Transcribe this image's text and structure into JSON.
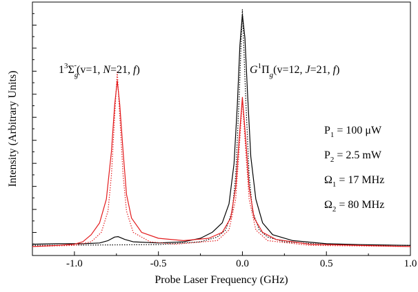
{
  "chart_data": {
    "type": "line",
    "xlabel": "Probe Laser Frequency (GHz)",
    "ylabel": "Intensity (Arbitrary Units)",
    "xlim": [
      -1.25,
      1.0
    ],
    "ylim": [
      0,
      1.0
    ],
    "x_ticks": [
      -1.0,
      -0.5,
      0.0,
      0.5,
      1.0
    ],
    "x_tick_labels": [
      "-1.0",
      "-0.5",
      "0.0",
      "0.5",
      "1.0"
    ],
    "y_tick_labels_shown": false,
    "grid": false,
    "series": [
      {
        "color": "#000000",
        "style": "solid",
        "points": [
          [
            -1.25,
            0.01
          ],
          [
            -1.1,
            0.012
          ],
          [
            -0.95,
            0.012
          ],
          [
            -0.85,
            0.015
          ],
          [
            -0.8,
            0.025
          ],
          [
            -0.76,
            0.04
          ],
          [
            -0.74,
            0.042
          ],
          [
            -0.7,
            0.03
          ],
          [
            -0.65,
            0.02
          ],
          [
            -0.5,
            0.015
          ],
          [
            -0.35,
            0.02
          ],
          [
            -0.25,
            0.035
          ],
          [
            -0.18,
            0.06
          ],
          [
            -0.12,
            0.1
          ],
          [
            -0.08,
            0.18
          ],
          [
            -0.05,
            0.35
          ],
          [
            -0.03,
            0.6
          ],
          [
            -0.015,
            0.85
          ],
          [
            0.0,
            0.98
          ],
          [
            0.015,
            0.88
          ],
          [
            0.03,
            0.65
          ],
          [
            0.05,
            0.38
          ],
          [
            0.08,
            0.2
          ],
          [
            0.12,
            0.1
          ],
          [
            0.18,
            0.05
          ],
          [
            0.3,
            0.025
          ],
          [
            0.5,
            0.012
          ],
          [
            0.7,
            0.008
          ],
          [
            1.0,
            0.005
          ]
        ]
      },
      {
        "color": "#000000",
        "style": "dotted",
        "points": [
          [
            -1.25,
            0.005
          ],
          [
            -0.5,
            0.008
          ],
          [
            -0.25,
            0.02
          ],
          [
            -0.15,
            0.04
          ],
          [
            -0.1,
            0.07
          ],
          [
            -0.06,
            0.15
          ],
          [
            -0.04,
            0.3
          ],
          [
            -0.02,
            0.62
          ],
          [
            0.0,
            1.0
          ],
          [
            0.02,
            0.62
          ],
          [
            0.04,
            0.3
          ],
          [
            0.06,
            0.15
          ],
          [
            0.1,
            0.07
          ],
          [
            0.15,
            0.04
          ],
          [
            0.25,
            0.02
          ],
          [
            0.5,
            0.008
          ],
          [
            1.0,
            0.005
          ]
        ]
      },
      {
        "color": "#e31a1c",
        "style": "solid",
        "points": [
          [
            -1.25,
            0.0
          ],
          [
            -1.1,
            0.005
          ],
          [
            -1.0,
            0.01
          ],
          [
            -0.95,
            0.02
          ],
          [
            -0.9,
            0.05
          ],
          [
            -0.85,
            0.1
          ],
          [
            -0.81,
            0.2
          ],
          [
            -0.78,
            0.4
          ],
          [
            -0.76,
            0.6
          ],
          [
            -0.745,
            0.7
          ],
          [
            -0.73,
            0.6
          ],
          [
            -0.71,
            0.4
          ],
          [
            -0.69,
            0.22
          ],
          [
            -0.66,
            0.12
          ],
          [
            -0.6,
            0.06
          ],
          [
            -0.5,
            0.035
          ],
          [
            -0.35,
            0.025
          ],
          [
            -0.2,
            0.035
          ],
          [
            -0.12,
            0.06
          ],
          [
            -0.07,
            0.12
          ],
          [
            -0.04,
            0.25
          ],
          [
            -0.02,
            0.45
          ],
          [
            0.0,
            0.63
          ],
          [
            0.02,
            0.45
          ],
          [
            0.04,
            0.25
          ],
          [
            0.07,
            0.12
          ],
          [
            0.12,
            0.06
          ],
          [
            0.2,
            0.03
          ],
          [
            0.4,
            0.01
          ],
          [
            1.0,
            0.0
          ]
        ]
      },
      {
        "color": "#e31a1c",
        "style": "dotted",
        "points": [
          [
            -1.25,
            0.0
          ],
          [
            -1.0,
            0.005
          ],
          [
            -0.9,
            0.02
          ],
          [
            -0.84,
            0.06
          ],
          [
            -0.8,
            0.15
          ],
          [
            -0.78,
            0.3
          ],
          [
            -0.76,
            0.55
          ],
          [
            -0.745,
            0.74
          ],
          [
            -0.73,
            0.55
          ],
          [
            -0.71,
            0.3
          ],
          [
            -0.69,
            0.15
          ],
          [
            -0.65,
            0.06
          ],
          [
            -0.55,
            0.02
          ],
          [
            -0.4,
            0.01
          ],
          [
            -0.15,
            0.025
          ],
          [
            -0.08,
            0.07
          ],
          [
            -0.04,
            0.2
          ],
          [
            -0.02,
            0.4
          ],
          [
            0.0,
            0.62
          ],
          [
            0.02,
            0.4
          ],
          [
            0.04,
            0.2
          ],
          [
            0.08,
            0.07
          ],
          [
            0.15,
            0.025
          ],
          [
            0.4,
            0.005
          ],
          [
            1.0,
            0.0
          ]
        ]
      }
    ],
    "annotations": {
      "left_peak": {
        "pre": "1",
        "sup": "3",
        "sigma": "Σ",
        "sub": "g",
        "sup2": "-",
        "mid": "(v=1, ",
        "italic1": "N",
        "mid2": "=21, ",
        "italic2": "f",
        "end": ")"
      },
      "right_peak": {
        "italic0": "G",
        "sup": "1",
        "pi": "Π",
        "sub": "g",
        "mid": "(v=12, ",
        "italic1": "J",
        "mid2": "=21, ",
        "italic2": "f",
        "end": ")"
      },
      "params": [
        {
          "sym": "P",
          "sub": "1",
          "rest": " = 100 μW"
        },
        {
          "sym": "P",
          "sub": "2",
          "rest": " = 2.5 mW"
        },
        {
          "sym": "Ω",
          "sub": "1",
          "rest": " = 17 MHz"
        },
        {
          "sym": "Ω",
          "sub": "2",
          "rest": " = 80 MHz"
        }
      ]
    }
  }
}
